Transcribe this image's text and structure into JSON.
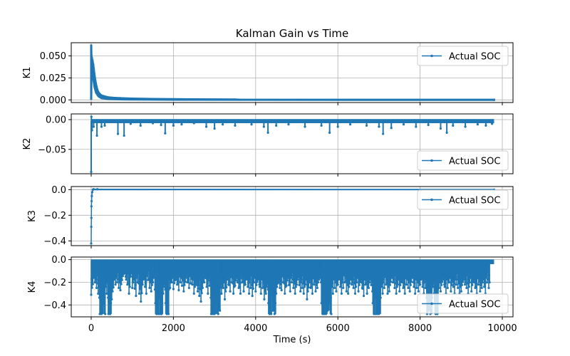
{
  "chart_data": {
    "type": "line",
    "title": "Kalman Gain vs Time",
    "color": "#1f77b4",
    "grid": true,
    "xlim": [
      -485,
      10260
    ],
    "xticks": [
      0,
      2000,
      4000,
      6000,
      8000,
      10000
    ],
    "xtick_labels": [
      "0",
      "2000",
      "4000",
      "6000",
      "8000",
      "10000"
    ],
    "subplots": [
      {
        "ylabel": "K1",
        "xlabel": "Time (s)",
        "legend": "Actual SOC",
        "legend_loc": "upper right",
        "ylim": [
          -0.003,
          0.065
        ],
        "yticks": [
          0,
          0.025,
          0.05
        ],
        "ytick_labels": [
          "0.000",
          "0.025",
          "0.050"
        ],
        "upper": [
          [
            0,
            0.062
          ],
          [
            5,
            0.05
          ],
          [
            15,
            0.048
          ],
          [
            30,
            0.045
          ],
          [
            50,
            0.04
          ],
          [
            75,
            0.03
          ],
          [
            100,
            0.022
          ],
          [
            130,
            0.015
          ],
          [
            160,
            0.01
          ],
          [
            200,
            0.007
          ],
          [
            250,
            0.005
          ],
          [
            320,
            0.004
          ],
          [
            400,
            0.003
          ],
          [
            500,
            0.0025
          ],
          [
            700,
            0.002
          ],
          [
            1000,
            0.0015
          ],
          [
            1500,
            0.001
          ],
          [
            2500,
            0.0006
          ],
          [
            3500,
            0.0004
          ],
          [
            3600,
            0.0002
          ],
          [
            9800,
            0.0001
          ]
        ],
        "lower": [
          [
            0,
            0.0
          ],
          [
            5,
            0.028
          ],
          [
            20,
            0.03
          ],
          [
            50,
            0.025
          ],
          [
            80,
            0.015
          ],
          [
            120,
            0.008
          ],
          [
            180,
            0.004
          ],
          [
            250,
            0.002
          ],
          [
            400,
            0.001
          ],
          [
            800,
            0.0005
          ],
          [
            2000,
            0.0002
          ],
          [
            9800,
            0.0
          ]
        ]
      },
      {
        "ylabel": "K2",
        "xlabel": "Time (s)",
        "legend": "Actual SOC",
        "legend_loc": "lower right",
        "ylim": [
          -0.091,
          0.0096
        ],
        "yticks": [
          0,
          -0.05
        ],
        "ytick_labels": [
          "0.00",
          "−0.05"
        ],
        "base": -0.002,
        "spikes": [
          [
            0,
            -0.088
          ],
          [
            5,
            0.005
          ],
          [
            20,
            -0.018
          ],
          [
            60,
            -0.012
          ],
          [
            140,
            -0.027
          ],
          [
            250,
            -0.012
          ],
          [
            330,
            -0.01
          ],
          [
            650,
            -0.024
          ],
          [
            800,
            -0.027
          ],
          [
            960,
            -0.007
          ],
          [
            1200,
            -0.01
          ],
          [
            1500,
            -0.006
          ],
          [
            1700,
            -0.009
          ],
          [
            1800,
            -0.023
          ],
          [
            2000,
            -0.01
          ],
          [
            2200,
            -0.008
          ],
          [
            2500,
            -0.006
          ],
          [
            2800,
            -0.012
          ],
          [
            3000,
            -0.015
          ],
          [
            3200,
            -0.008
          ],
          [
            3500,
            -0.01
          ],
          [
            3900,
            -0.008
          ],
          [
            4200,
            -0.012
          ],
          [
            4300,
            -0.022
          ],
          [
            4500,
            -0.01
          ],
          [
            4800,
            -0.008
          ],
          [
            5200,
            -0.012
          ],
          [
            5600,
            -0.01
          ],
          [
            5800,
            -0.022
          ],
          [
            6000,
            -0.012
          ],
          [
            6300,
            -0.008
          ],
          [
            6700,
            -0.01
          ],
          [
            7000,
            -0.012
          ],
          [
            7100,
            -0.024
          ],
          [
            7300,
            -0.014
          ],
          [
            7600,
            -0.008
          ],
          [
            7900,
            -0.012
          ],
          [
            8200,
            -0.009
          ],
          [
            8500,
            -0.015
          ],
          [
            8650,
            -0.022
          ],
          [
            8800,
            -0.01
          ],
          [
            9100,
            -0.012
          ],
          [
            9400,
            -0.008
          ],
          [
            9600,
            -0.01
          ],
          [
            9750,
            -0.007
          ]
        ]
      },
      {
        "ylabel": "K3",
        "xlabel": "Time (s)",
        "legend": "Actual SOC",
        "legend_loc": "upper right",
        "ylim": [
          -0.437,
          0.024
        ],
        "yticks": [
          0,
          -0.2,
          -0.4
        ],
        "ytick_labels": [
          "0.0",
          "−0.2",
          "−0.4"
        ],
        "points": [
          [
            0,
            -0.42
          ],
          [
            2,
            -0.29
          ],
          [
            4,
            -0.22
          ],
          [
            6,
            -0.13
          ],
          [
            10,
            -0.09
          ],
          [
            15,
            -0.05
          ],
          [
            25,
            -0.02
          ],
          [
            40,
            0.0
          ],
          [
            60,
            0.003
          ],
          [
            150,
            0.003
          ],
          [
            9800,
            0.0
          ]
        ]
      },
      {
        "ylabel": "K4",
        "xlabel": "Time (s)",
        "legend": "Actual SOC",
        "legend_loc": "lower right",
        "ylim": [
          -0.505,
          0.023
        ],
        "yticks": [
          0,
          -0.2,
          -0.4
        ],
        "ytick_labels": [
          "0.0",
          "−0.2",
          "−0.4"
        ],
        "bin_width": 50,
        "bin_minima": [
          -0.31,
          -0.2,
          -0.25,
          -0.3,
          -0.48,
          -0.48,
          -0.48,
          -0.3,
          -0.48,
          -0.48,
          -0.35,
          -0.22,
          -0.2,
          -0.25,
          -0.27,
          -0.18,
          -0.15,
          -0.22,
          -0.3,
          -0.15,
          -0.25,
          -0.32,
          -0.2,
          -0.3,
          -0.37,
          -0.22,
          -0.3,
          -0.18,
          -0.25,
          -0.28,
          -0.2,
          -0.48,
          -0.48,
          -0.48,
          -0.48,
          -0.3,
          -0.48,
          -0.48,
          -0.25,
          -0.2,
          -0.26,
          -0.22,
          -0.27,
          -0.2,
          -0.23,
          -0.28,
          -0.2,
          -0.25,
          -0.21,
          -0.22,
          -0.3,
          -0.28,
          -0.32,
          -0.37,
          -0.25,
          -0.2,
          -0.3,
          -0.23,
          -0.48,
          -0.48,
          -0.48,
          -0.48,
          -0.45,
          -0.3,
          -0.25,
          -0.35,
          -0.22,
          -0.28,
          -0.2,
          -0.3,
          -0.23,
          -0.25,
          -0.3,
          -0.2,
          -0.28,
          -0.22,
          -0.3,
          -0.25,
          -0.32,
          -0.2,
          -0.28,
          -0.22,
          -0.3,
          -0.25,
          -0.35,
          -0.3,
          -0.48,
          -0.48,
          -0.45,
          -0.48,
          -0.3,
          -0.25,
          -0.27,
          -0.2,
          -0.3,
          -0.23,
          -0.28,
          -0.2,
          -0.25,
          -0.3,
          -0.22,
          -0.28,
          -0.25,
          -0.3,
          -0.22,
          -0.35,
          -0.25,
          -0.3,
          -0.22,
          -0.28,
          -0.25,
          -0.2,
          -0.48,
          -0.48,
          -0.48,
          -0.45,
          -0.48,
          -0.3,
          -0.25,
          -0.28,
          -0.22,
          -0.3,
          -0.25,
          -0.2,
          -0.28,
          -0.3,
          -0.22,
          -0.25,
          -0.3,
          -0.2,
          -0.28,
          -0.25,
          -0.32,
          -0.22,
          -0.3,
          -0.25,
          -0.28,
          -0.48,
          -0.48,
          -0.48,
          -0.48,
          -0.3,
          -0.25,
          -0.22,
          -0.3,
          -0.28,
          -0.2,
          -0.25,
          -0.3,
          -0.22,
          -0.28,
          -0.25,
          -0.3,
          -0.22,
          -0.25,
          -0.28,
          -0.2,
          -0.3,
          -0.25,
          -0.28,
          -0.22,
          -0.3,
          -0.25,
          -0.48,
          -0.45,
          -0.48,
          -0.3,
          -0.48,
          -0.48,
          -0.25,
          -0.28,
          -0.22,
          -0.3,
          -0.25,
          -0.2,
          -0.28,
          -0.3,
          -0.22,
          -0.25,
          -0.3,
          -0.28,
          -0.22,
          -0.25,
          -0.3,
          -0.2,
          -0.28,
          -0.25,
          -0.3,
          -0.22,
          -0.28,
          -0.25,
          -0.3,
          -0.2,
          -0.25
        ]
      }
    ]
  }
}
